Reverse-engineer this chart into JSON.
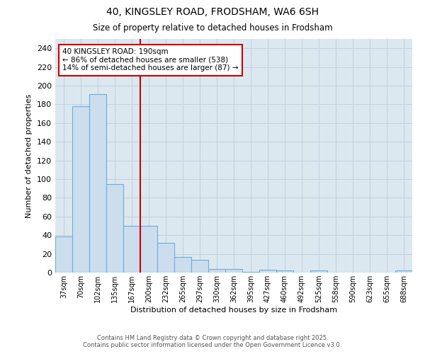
{
  "title_line1": "40, KINGSLEY ROAD, FRODSHAM, WA6 6SH",
  "title_line2": "Size of property relative to detached houses in Frodsham",
  "xlabel": "Distribution of detached houses by size in Frodsham",
  "ylabel": "Number of detached properties",
  "bar_labels": [
    "37sqm",
    "70sqm",
    "102sqm",
    "135sqm",
    "167sqm",
    "200sqm",
    "232sqm",
    "265sqm",
    "297sqm",
    "330sqm",
    "362sqm",
    "395sqm",
    "427sqm",
    "460sqm",
    "492sqm",
    "525sqm",
    "558sqm",
    "590sqm",
    "623sqm",
    "655sqm",
    "688sqm"
  ],
  "bar_values": [
    39,
    178,
    191,
    95,
    50,
    50,
    32,
    17,
    14,
    4,
    4,
    1,
    3,
    2,
    0,
    2,
    0,
    0,
    0,
    0,
    2
  ],
  "bar_color": "#ccdded",
  "bar_edge_color": "#6aaed6",
  "grid_color": "#c0d0e0",
  "background_color": "#dce8f0",
  "annotation_text": "40 KINGSLEY ROAD: 190sqm\n← 86% of detached houses are smaller (538)\n14% of semi-detached houses are larger (87) →",
  "annotation_box_color": "#ffffff",
  "annotation_box_edge": "#cc0000",
  "vline_color": "#cc0000",
  "ylim": [
    0,
    250
  ],
  "yticks": [
    0,
    20,
    40,
    60,
    80,
    100,
    120,
    140,
    160,
    180,
    200,
    220,
    240
  ],
  "footer_line1": "Contains HM Land Registry data © Crown copyright and database right 2025.",
  "footer_line2": "Contains public sector information licensed under the Open Government Licence v3.0.",
  "vline_index": 5
}
